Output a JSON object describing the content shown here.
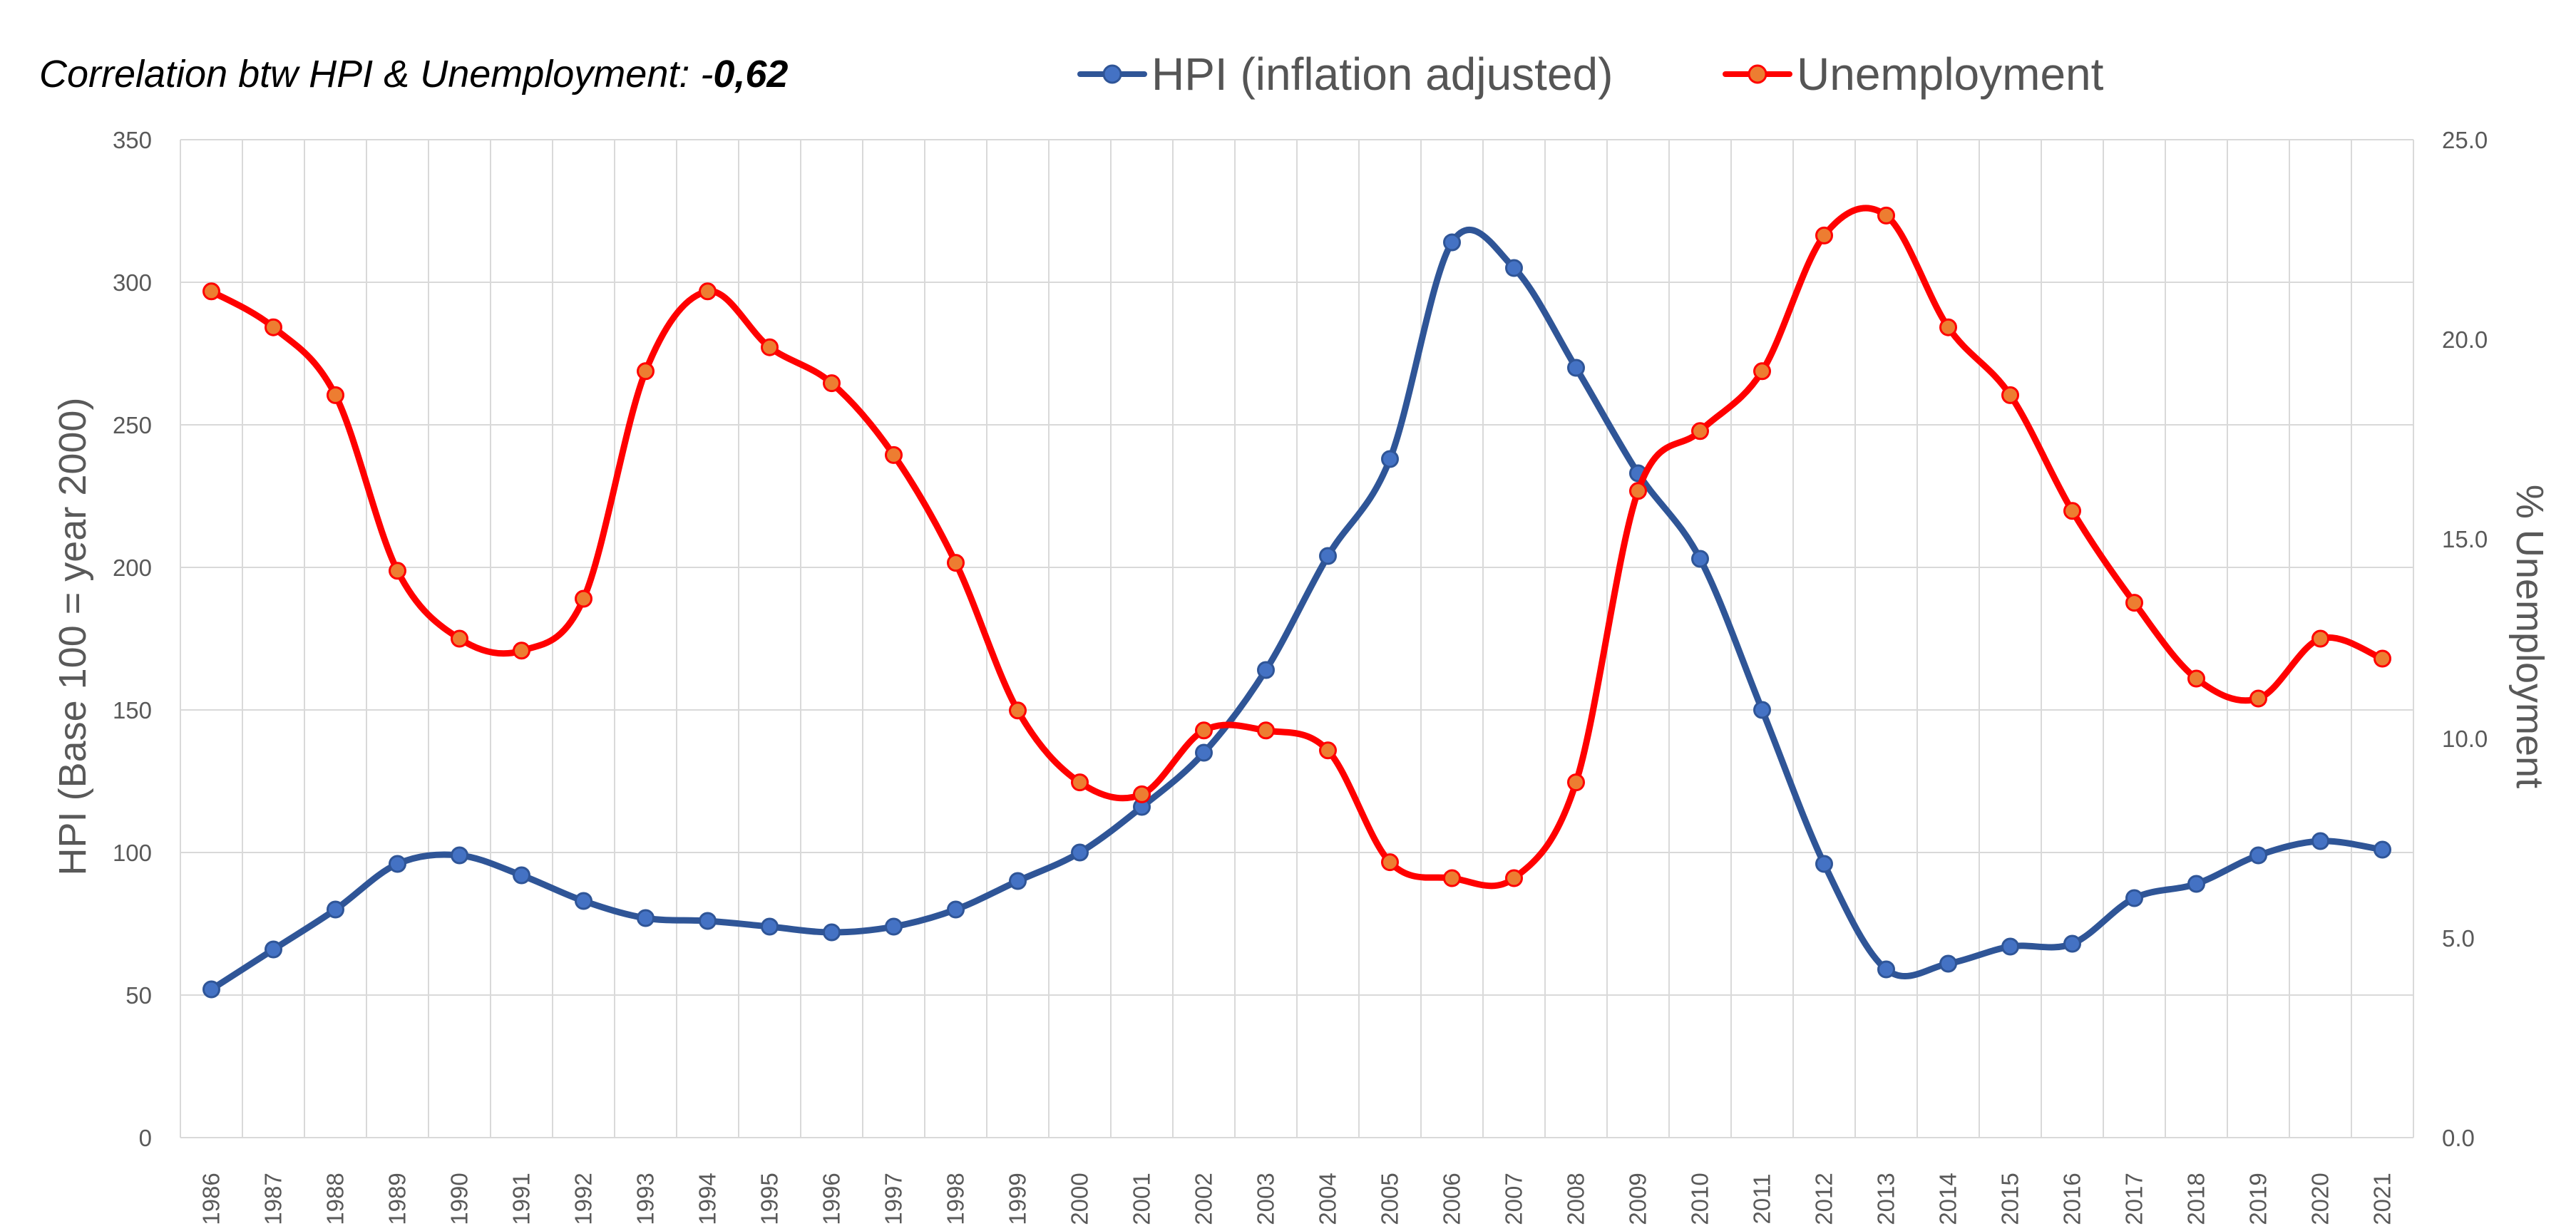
{
  "chart_data": {
    "type": "line",
    "annotation": {
      "prefix": "Correlation btw HPI & Unemployment: -",
      "value": "0,62"
    },
    "categories": [
      "1986",
      "1987",
      "1988",
      "1989",
      "1990",
      "1991",
      "1992",
      "1993",
      "1994",
      "1995",
      "1996",
      "1997",
      "1998",
      "1999",
      "2000",
      "2001",
      "2002",
      "2003",
      "2004",
      "2005",
      "2006",
      "2007",
      "2008",
      "2009",
      "2010",
      "2011",
      "2012",
      "2013",
      "2014",
      "2015",
      "2016",
      "2017",
      "2018",
      "2019",
      "2020",
      "2021"
    ],
    "series": [
      {
        "name": "HPI (inflation adjusted)",
        "axis": "left",
        "color": "#2f5597",
        "marker_fill": "#4472c4",
        "values": [
          52,
          66,
          80,
          96,
          99,
          92,
          83,
          77,
          76,
          74,
          72,
          74,
          80,
          90,
          100,
          116,
          135,
          164,
          204,
          238,
          314,
          305,
          270,
          233,
          203,
          150,
          96,
          59,
          61,
          67,
          68,
          84,
          89,
          99,
          104,
          101
        ]
      },
      {
        "name": "Unemployment",
        "axis": "right",
        "color": "#ff0000",
        "marker_fill": "#ed7d31",
        "values": [
          21.2,
          20.3,
          18.6,
          14.2,
          12.5,
          12.2,
          13.5,
          19.2,
          21.2,
          19.8,
          18.9,
          17.1,
          14.4,
          10.7,
          8.9,
          8.6,
          10.2,
          10.2,
          9.7,
          6.9,
          6.5,
          6.5,
          8.9,
          16.2,
          17.7,
          19.2,
          22.6,
          23.1,
          20.3,
          18.6,
          15.7,
          13.4,
          11.5,
          11.0,
          12.5,
          12.0
        ]
      }
    ],
    "ylabel": "HPI (Base 100 = year 2000)",
    "ylim": [
      0,
      350
    ],
    "yticks": [
      "0",
      "50",
      "100",
      "150",
      "200",
      "250",
      "300",
      "350"
    ],
    "y2label": "% Unemployment",
    "y2lim": [
      0,
      25
    ],
    "y2ticks": [
      "0.0",
      "5.0",
      "10.0",
      "15.0",
      "20.0",
      "25.0"
    ],
    "grid": true,
    "legend_position": "top-center"
  }
}
